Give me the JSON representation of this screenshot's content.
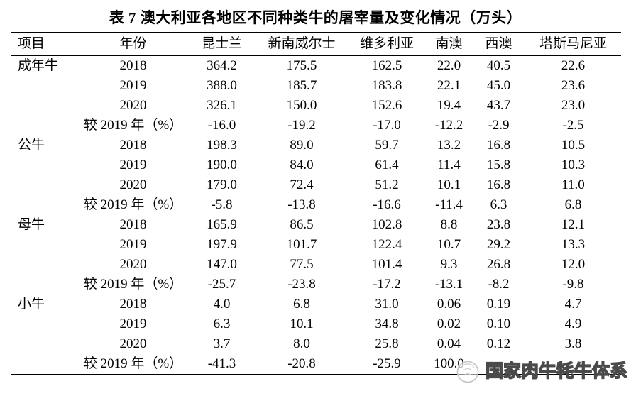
{
  "title": "表 7 澳大利亚各地区不同种类牛的屠宰量及变化情况（万头）",
  "table": {
    "columns": [
      "项目",
      "年份",
      "昆士兰",
      "新南威尔士",
      "维多利亚",
      "南澳",
      "西澳",
      "塔斯马尼亚"
    ],
    "sections": [
      {
        "item": "成年牛",
        "rows": [
          {
            "year": "2018",
            "values": [
              "364.2",
              "175.5",
              "162.5",
              "22.0",
              "40.5",
              "22.6"
            ]
          },
          {
            "year": "2019",
            "values": [
              "388.0",
              "185.7",
              "183.8",
              "22.1",
              "45.0",
              "23.6"
            ]
          },
          {
            "year": "2020",
            "values": [
              "326.1",
              "150.0",
              "152.6",
              "19.4",
              "43.7",
              "23.0"
            ]
          },
          {
            "year": "较 2019 年（%）",
            "values": [
              "-16.0",
              "-19.2",
              "-17.0",
              "-12.2",
              "-2.9",
              "-2.5"
            ]
          }
        ]
      },
      {
        "item": "公牛",
        "rows": [
          {
            "year": "2018",
            "values": [
              "198.3",
              "89.0",
              "59.7",
              "13.2",
              "16.8",
              "10.5"
            ]
          },
          {
            "year": "2019",
            "values": [
              "190.0",
              "84.0",
              "61.4",
              "11.4",
              "15.8",
              "10.3"
            ]
          },
          {
            "year": "2020",
            "values": [
              "179.0",
              "72.4",
              "51.2",
              "10.1",
              "16.8",
              "11.0"
            ]
          },
          {
            "year": "较 2019 年（%）",
            "values": [
              "-5.8",
              "-13.8",
              "-16.6",
              "-11.4",
              "6.3",
              "6.8"
            ]
          }
        ]
      },
      {
        "item": "母牛",
        "rows": [
          {
            "year": "2018",
            "values": [
              "165.9",
              "86.5",
              "102.8",
              "8.8",
              "23.8",
              "12.1"
            ]
          },
          {
            "year": "2019",
            "values": [
              "197.9",
              "101.7",
              "122.4",
              "10.7",
              "29.2",
              "13.3"
            ]
          },
          {
            "year": "2020",
            "values": [
              "147.0",
              "77.5",
              "101.4",
              "9.3",
              "26.8",
              "12.0"
            ]
          },
          {
            "year": "较 2019 年（%）",
            "values": [
              "-25.7",
              "-23.8",
              "-17.2",
              "-13.1",
              "-8.2",
              "-9.8"
            ]
          }
        ]
      },
      {
        "item": "小牛",
        "rows": [
          {
            "year": "2018",
            "values": [
              "4.0",
              "6.8",
              "31.0",
              "0.06",
              "0.19",
              "4.7"
            ]
          },
          {
            "year": "2019",
            "values": [
              "6.3",
              "10.1",
              "34.8",
              "0.02",
              "0.10",
              "4.9"
            ]
          },
          {
            "year": "2020",
            "values": [
              "3.7",
              "8.0",
              "25.8",
              "0.04",
              "0.12",
              "3.8"
            ]
          },
          {
            "year": "较 2019 年（%）",
            "values": [
              "-41.3",
              "-20.8",
              "-25.9",
              "100.0",
              "",
              ""
            ]
          }
        ]
      }
    ]
  },
  "watermark": {
    "text": "国家肉牛牦牛体系",
    "logo": "cattle-circle-logo"
  },
  "colors": {
    "background": "#ffffff",
    "text": "#000000",
    "border": "#000000",
    "watermark_stroke": "#4a4a4a",
    "logo_stroke": "#c4c4c4"
  }
}
